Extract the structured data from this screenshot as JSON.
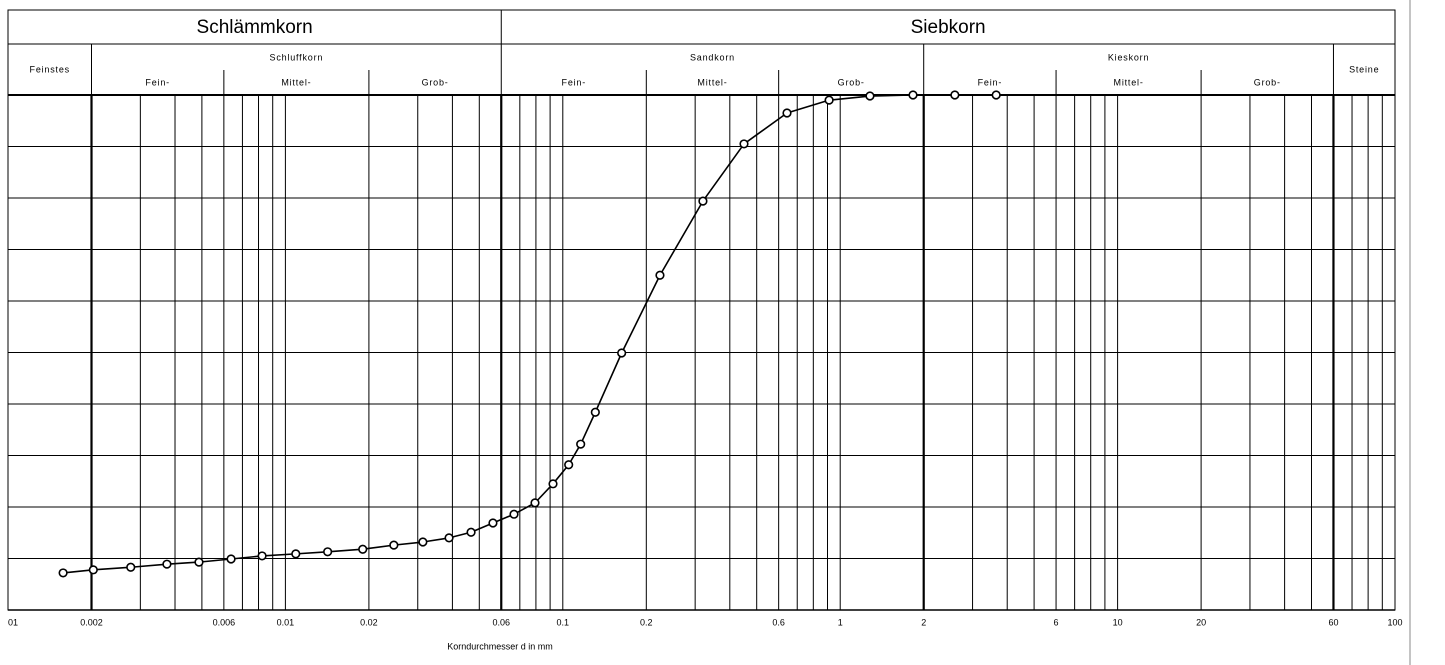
{
  "chart_data": {
    "type": "line",
    "xscale": "log",
    "xlim": [
      0.001,
      100
    ],
    "ylim": [
      0,
      100
    ],
    "ygrid": [
      0,
      10,
      20,
      30,
      40,
      50,
      60,
      70,
      80,
      90,
      100
    ],
    "xticks": [
      {
        "value": 0.001,
        "label": "01"
      },
      0.002,
      0.006,
      0.01,
      0.02,
      0.06,
      0.1,
      0.2,
      0.6,
      1,
      2,
      6,
      10,
      20,
      60,
      100
    ],
    "xgrid": [
      0.002,
      0.003,
      0.004,
      0.005,
      0.006,
      0.007,
      0.008,
      0.009,
      0.01,
      0.02,
      0.03,
      0.04,
      0.05,
      0.06,
      0.07,
      0.08,
      0.09,
      0.1,
      0.2,
      0.3,
      0.4,
      0.5,
      0.6,
      0.7,
      0.8,
      0.9,
      1,
      2,
      3,
      4,
      5,
      6,
      7,
      8,
      9,
      10,
      20,
      30,
      40,
      50,
      60,
      70,
      80,
      90,
      100
    ],
    "xgrid_major": [
      0.002,
      0.06,
      2,
      60
    ],
    "xlabel": "Korndurchmesser d in mm",
    "groups": [
      {
        "label": "Schlämmkorn",
        "from": 0.001,
        "to": 0.06
      },
      {
        "label": "Siebkorn",
        "from": 0.06,
        "to": 100
      }
    ],
    "fractions": [
      {
        "label": "Feinstes",
        "from": 0.001,
        "to": 0.002,
        "parts": []
      },
      {
        "label": "Schluffkorn",
        "from": 0.002,
        "to": 0.06,
        "parts": [
          {
            "label": "Fein-",
            "from": 0.002,
            "to": 0.006
          },
          {
            "label": "Mittel-",
            "from": 0.006,
            "to": 0.02
          },
          {
            "label": "Grob-",
            "from": 0.02,
            "to": 0.06
          }
        ]
      },
      {
        "label": "Sandkorn",
        "from": 0.06,
        "to": 2,
        "parts": [
          {
            "label": "Fein-",
            "from": 0.06,
            "to": 0.2
          },
          {
            "label": "Mittel-",
            "from": 0.2,
            "to": 0.6
          },
          {
            "label": "Grob-",
            "from": 0.6,
            "to": 2
          }
        ]
      },
      {
        "label": "Kieskorn",
        "from": 2,
        "to": 60,
        "parts": [
          {
            "label": "Fein-",
            "from": 2,
            "to": 6
          },
          {
            "label": "Mittel-",
            "from": 6,
            "to": 20
          },
          {
            "label": "Grob-",
            "from": 20,
            "to": 60
          }
        ]
      },
      {
        "label": "Steine",
        "from": 60,
        "to": 100,
        "parts": []
      }
    ],
    "series": [
      {
        "color": "#000000",
        "x": [
          0.00158,
          0.00203,
          0.00277,
          0.00374,
          0.00488,
          0.00637,
          0.00824,
          0.0109,
          0.0142,
          0.019,
          0.0246,
          0.0313,
          0.0389,
          0.0467,
          0.056,
          0.0667,
          0.0794,
          0.0922,
          0.105,
          0.116,
          0.131,
          0.163,
          0.224,
          0.32,
          0.45,
          0.643,
          0.912,
          1.28,
          1.83,
          2.59,
          3.65
        ],
        "values": [
          7.2,
          7.8,
          8.3,
          8.9,
          9.3,
          9.9,
          10.5,
          10.9,
          11.3,
          11.8,
          12.6,
          13.2,
          14.0,
          15.1,
          16.9,
          18.6,
          20.8,
          24.5,
          28.2,
          32.2,
          38.4,
          49.9,
          65.0,
          79.4,
          90.5,
          96.5,
          99.0,
          99.8,
          100,
          100,
          100
        ]
      }
    ]
  }
}
